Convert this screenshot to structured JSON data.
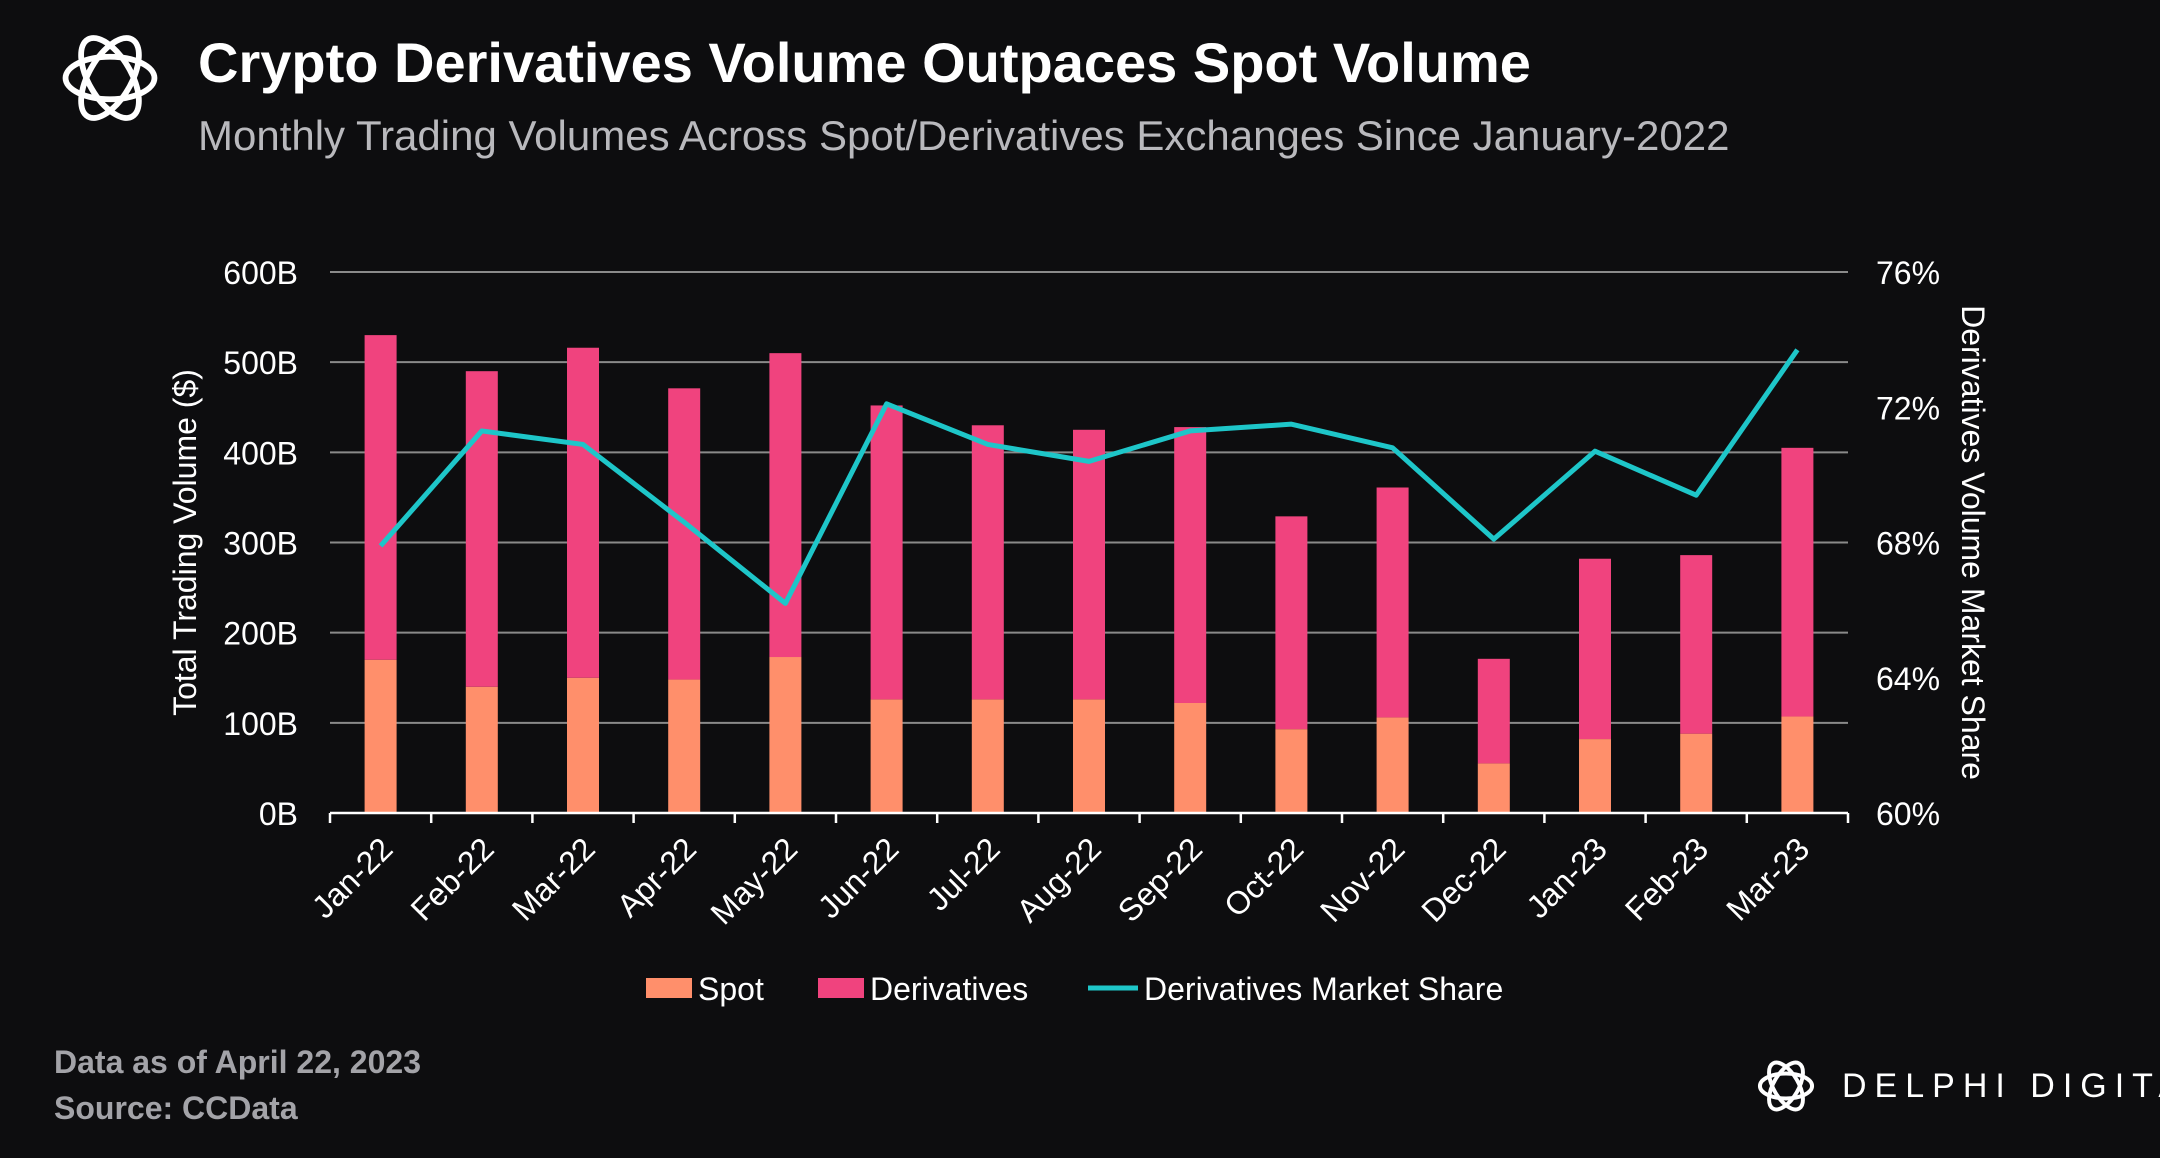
{
  "header": {
    "title": "Crypto Derivatives Volume Outpaces Spot Volume",
    "subtitle": "Monthly Trading Volumes Across Spot/Derivatives Exchanges Since January-2022"
  },
  "footer": {
    "data_note": "Data as of April 22, 2023",
    "source": "Source: CCData",
    "brand": "DELPHI DIGITAL"
  },
  "icons": {
    "header_logo": "delphi-knot-icon",
    "brand_logo": "delphi-knot-icon"
  },
  "colors": {
    "background": "#0d0d0f",
    "spot": "#ff8f6b",
    "derivatives": "#f0437e",
    "share_line": "#1ec6c9",
    "gridline": "#8a8a8a",
    "text": "#ffffff"
  },
  "chart_data": {
    "type": "bar",
    "stacked": true,
    "title": "",
    "categories": [
      "Jan-22",
      "Feb-22",
      "Mar-22",
      "Apr-22",
      "May-22",
      "Jun-22",
      "Jul-22",
      "Aug-22",
      "Sep-22",
      "Oct-22",
      "Nov-22",
      "Dec-22",
      "Jan-23",
      "Feb-23",
      "Mar-23"
    ],
    "ylabel": "Total Trading Volume ($)",
    "y2label": "Derivatives Volume Market Share",
    "ylim": [
      0,
      600
    ],
    "y_ticks": [
      "0B",
      "100B",
      "200B",
      "300B",
      "400B",
      "500B",
      "600B"
    ],
    "y2lim": [
      60,
      76
    ],
    "y2_ticks": [
      "60%",
      "64%",
      "68%",
      "72%",
      "76%"
    ],
    "grid": true,
    "legend_position": "bottom",
    "series": [
      {
        "name": "Spot",
        "type": "bar",
        "axis": "left",
        "values": [
          170,
          140,
          150,
          148,
          173,
          126,
          126,
          126,
          122,
          93,
          106,
          55,
          82,
          88,
          107
        ]
      },
      {
        "name": "Derivatives",
        "type": "bar",
        "axis": "left",
        "values": [
          360,
          350,
          366,
          323,
          337,
          326,
          304,
          299,
          306,
          236,
          255,
          116,
          200,
          198,
          298
        ]
      },
      {
        "name": "Derivatives Market Share",
        "type": "line",
        "axis": "right",
        "values": [
          67.9,
          71.3,
          70.9,
          68.6,
          66.2,
          72.1,
          70.9,
          70.4,
          71.3,
          71.5,
          70.8,
          68.1,
          70.7,
          69.4,
          73.7
        ]
      }
    ]
  }
}
